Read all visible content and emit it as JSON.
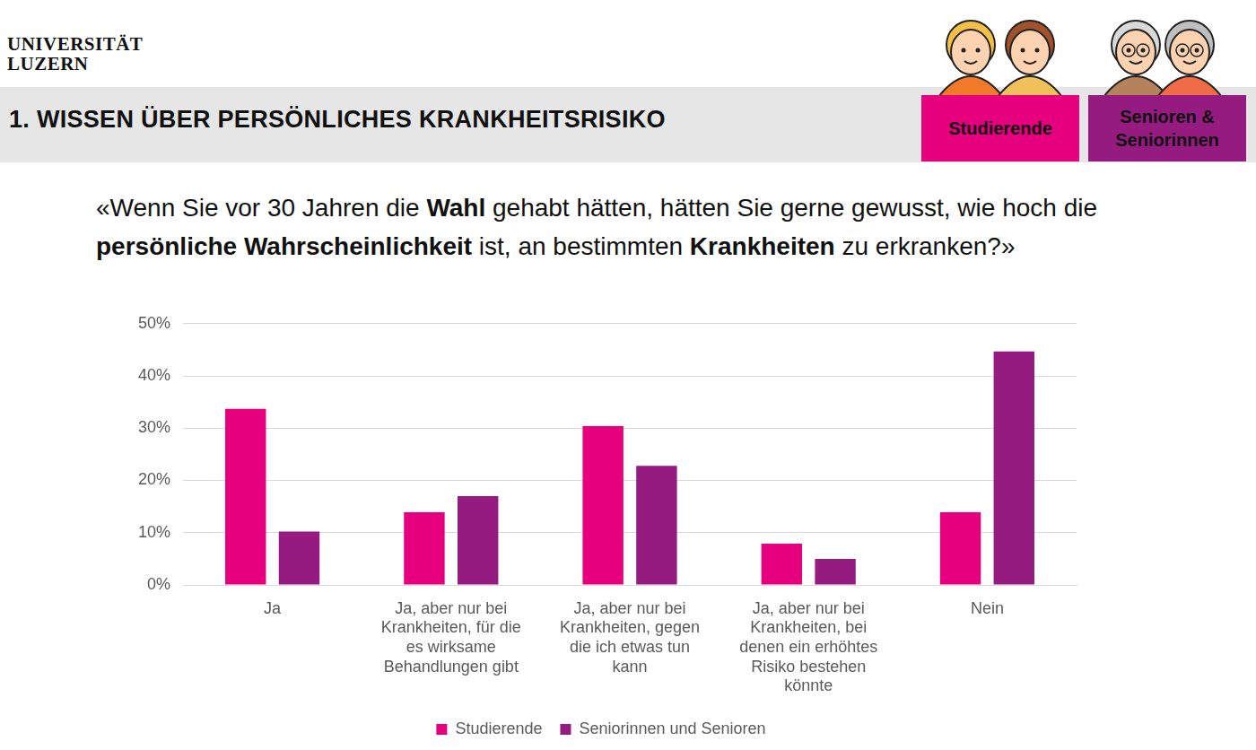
{
  "header": {
    "logo": [
      "UNIVERSITÄT",
      "LUZERN"
    ],
    "title": "1. WISSEN ÜBER PERSÖNLICHES KRANKHEITSRISIKO",
    "groups": [
      {
        "label": "Studierende",
        "color": "#e6007e"
      },
      {
        "label": "Senioren & Seniorinnen",
        "color": "#951b81"
      }
    ]
  },
  "question": [
    {
      "text": "«Wenn Sie vor 30 Jahren die ",
      "bold": false
    },
    {
      "text": "Wahl",
      "bold": true
    },
    {
      "text": " gehabt hätten, hätten Sie gerne gewusst, wie hoch die ",
      "bold": false
    },
    {
      "text": "persönliche Wahrscheinlichkeit",
      "bold": true
    },
    {
      "text": " ist, an bestimmten ",
      "bold": false
    },
    {
      "text": "Krankheiten",
      "bold": true
    },
    {
      "text": " zu erkranken?»",
      "bold": false
    }
  ],
  "chart_data": {
    "type": "bar",
    "categories": [
      "Ja",
      "Ja, aber nur bei Krankheiten, für die es wirksame Behandlungen gibt",
      "Ja, aber nur bei Krankheiten, gegen die ich etwas tun kann",
      "Ja, aber nur bei Krankheiten, bei denen ein erhöhtes Risiko bestehen könnte",
      "Nein"
    ],
    "series": [
      {
        "name": "Studierende",
        "color": "#e6007e",
        "values": [
          33.7,
          13.9,
          30.4,
          7.9,
          13.9
        ]
      },
      {
        "name": "Seniorinnen und Senioren",
        "color": "#951b81",
        "values": [
          10.2,
          17.0,
          22.8,
          5.0,
          44.7
        ]
      }
    ],
    "ylim": [
      0,
      50
    ],
    "yticks": [
      {
        "value": 0,
        "label": "0%"
      },
      {
        "value": 10,
        "label": "10%"
      },
      {
        "value": 20,
        "label": "20%"
      },
      {
        "value": 30,
        "label": "30%"
      },
      {
        "value": 40,
        "label": "40%"
      },
      {
        "value": 50,
        "label": "50%"
      }
    ],
    "grid": true,
    "legend": "bottom"
  }
}
